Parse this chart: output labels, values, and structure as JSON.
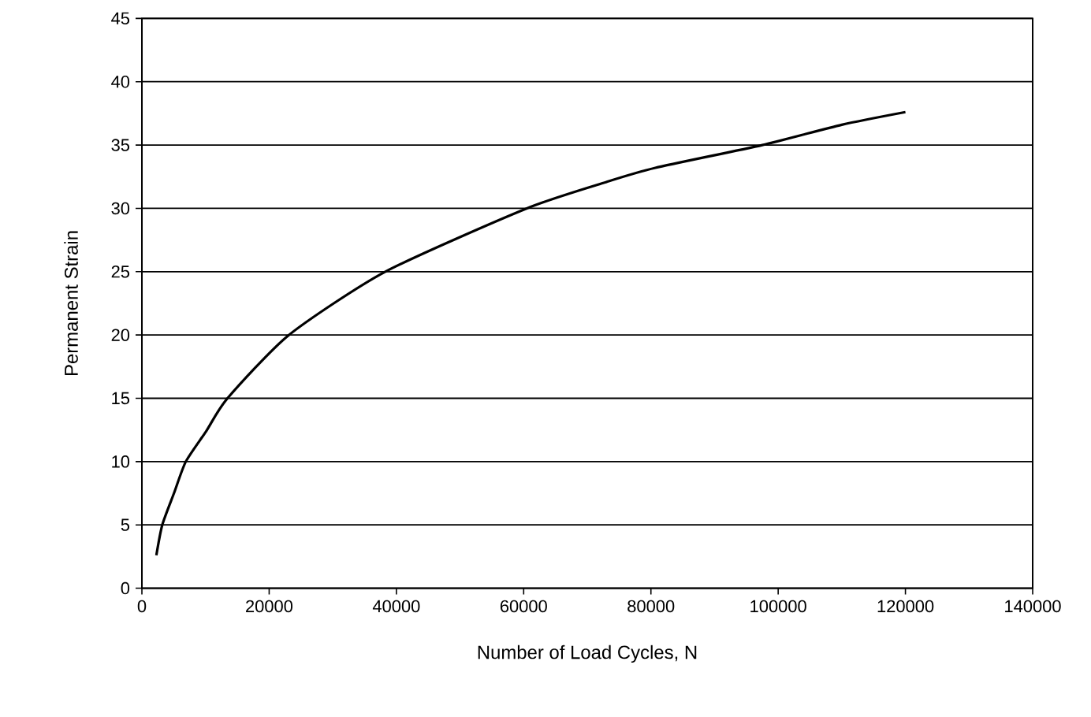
{
  "chart_data": {
    "type": "line",
    "xlabel": "Number of Load Cycles, N",
    "ylabel": "Permanent Strain",
    "x": [
      2270,
      3200,
      5040,
      6900,
      10100,
      13450,
      23100,
      38250,
      60500,
      73100,
      80700,
      97500,
      110000,
      120000
    ],
    "series": [
      {
        "color": "#000000",
        "values": [
          2.6,
          5,
          7.5,
          10,
          12.4,
          15,
          20,
          25,
          30,
          32.1,
          33.2,
          35,
          36.6,
          37.6
        ]
      }
    ],
    "xlim": [
      0,
      140000
    ],
    "ylim": [
      0,
      45
    ],
    "xticks": [
      0,
      20000,
      40000,
      60000,
      80000,
      100000,
      120000,
      140000
    ],
    "yticks": [
      0,
      5,
      10,
      15,
      20,
      25,
      30,
      35,
      40,
      45
    ],
    "grid": "y",
    "marker": "none",
    "line_style": "solid"
  }
}
